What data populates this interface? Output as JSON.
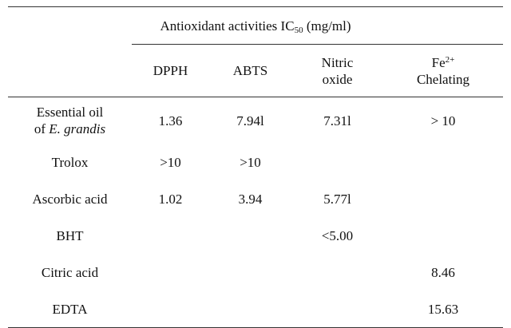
{
  "table": {
    "title": {
      "text": "Antioxidant activities IC",
      "subscript": "50",
      "unit": "(mg/ml)"
    },
    "columns": [
      {
        "lines": [
          "DPPH"
        ]
      },
      {
        "lines": [
          "ABTS"
        ]
      },
      {
        "lines": [
          "Nitric",
          "oxide"
        ]
      },
      {
        "lines": [
          "Fe",
          "Chelating"
        ],
        "superscript": "2+"
      }
    ],
    "rows": [
      {
        "label": {
          "lines": [
            "Essential oil",
            "of"
          ],
          "italic": "E. grandis"
        },
        "cells": [
          "1.36",
          "7.94l",
          "7.31l",
          "> 10"
        ]
      },
      {
        "label": {
          "lines": [
            "Trolox"
          ]
        },
        "cells": [
          ">10",
          ">10",
          null,
          null
        ]
      },
      {
        "label": {
          "lines": [
            "Ascorbic acid"
          ]
        },
        "cells": [
          "1.02",
          "3.94",
          "5.77l",
          null
        ]
      },
      {
        "label": {
          "lines": [
            "BHT"
          ]
        },
        "cells": [
          null,
          null,
          "<5.00",
          null
        ]
      },
      {
        "label": {
          "lines": [
            "Citric acid"
          ]
        },
        "cells": [
          null,
          null,
          null,
          "8.46"
        ]
      },
      {
        "label": {
          "lines": [
            "EDTA"
          ]
        },
        "cells": [
          null,
          null,
          null,
          "15.63"
        ]
      }
    ]
  }
}
